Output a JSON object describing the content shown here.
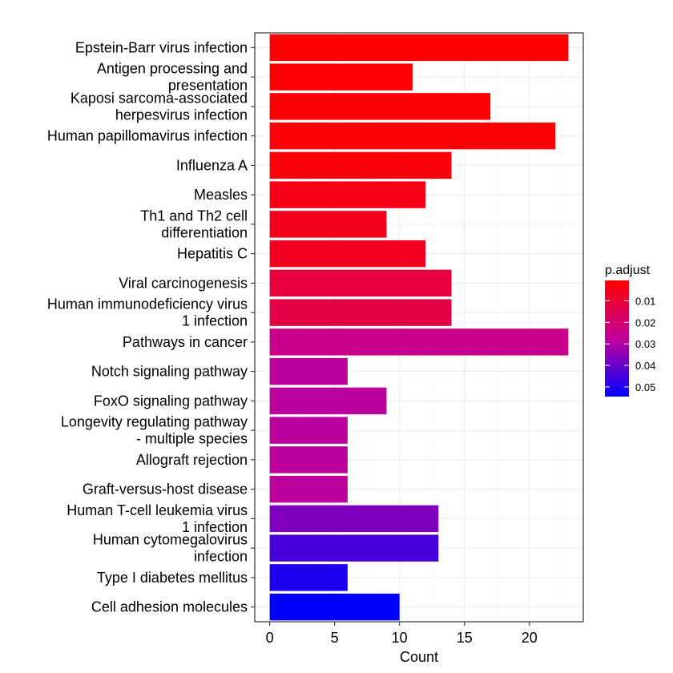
{
  "chart_data": {
    "type": "bar",
    "orientation": "horizontal",
    "title": "",
    "xlabel": "Count",
    "ylabel": "",
    "xlim": [
      -1.15,
      24.15
    ],
    "xticks": [
      0,
      5,
      10,
      15,
      20
    ],
    "grid": true,
    "legend_position": "right",
    "categories": [
      "Epstein-Barr virus infection",
      "Antigen processing and\npresentation",
      "Kaposi sarcoma-associated\nherpesvirus infection",
      "Human papillomavirus infection",
      "Influenza A",
      "Measles",
      "Th1 and Th2 cell\ndifferentiation",
      "Hepatitis C",
      "Viral carcinogenesis",
      "Human immunodeficiency virus\n1 infection",
      "Pathways in cancer",
      "Notch signaling pathway",
      "FoxO signaling pathway",
      "Longevity regulating pathway\n- multiple species",
      "Allograft rejection",
      "Graft-versus-host disease",
      "Human T-cell leukemia virus\n1 infection",
      "Human cytomegalovirus\ninfection",
      "Type I diabetes mellitus",
      "Cell adhesion molecules"
    ],
    "values": [
      23,
      11,
      17,
      22,
      14,
      12,
      9,
      12,
      14,
      14,
      23,
      6,
      9,
      6,
      6,
      6,
      13,
      13,
      6,
      10
    ],
    "p_adjust": [
      0.0005,
      0.001,
      0.0012,
      0.0015,
      0.002,
      0.0045,
      0.0055,
      0.0065,
      0.011,
      0.0125,
      0.025,
      0.0285,
      0.0285,
      0.0285,
      0.0285,
      0.0285,
      0.037,
      0.0445,
      0.0505,
      0.0545
    ],
    "colorbar": {
      "title": "p.adjust",
      "min": 0.0005,
      "max": 0.0545,
      "ticks": [
        0.01,
        0.02,
        0.03,
        0.04,
        0.05
      ],
      "tick_labels": [
        "0.01",
        "0.02",
        "0.03",
        "0.04",
        "0.05"
      ],
      "low_color": "#ff0000",
      "high_color": "#0000ff"
    }
  }
}
